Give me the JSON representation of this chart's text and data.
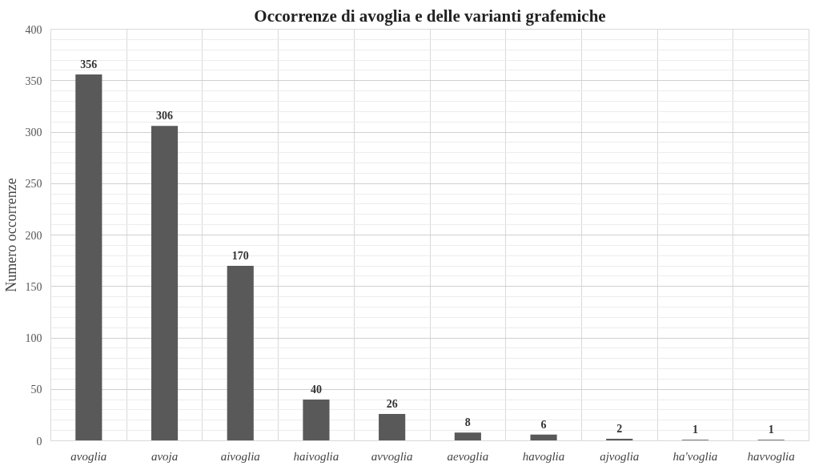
{
  "chart_data": {
    "type": "bar",
    "title": "Occorrenze di avoglia e delle varianti grafemiche",
    "ylabel": "Numero occorrenze",
    "categories": [
      "avoglia",
      "avoja",
      "aivoglia",
      "haivoglia",
      "avvoglia",
      "aevoglia",
      "havoglia",
      "ajvoglia",
      "ha'voglia",
      "havvoglia"
    ],
    "values": [
      356,
      306,
      170,
      40,
      26,
      8,
      6,
      2,
      1,
      1
    ],
    "color": "#595959",
    "ylim": [
      0,
      400
    ],
    "yticks": [
      0,
      50,
      100,
      150,
      200,
      250,
      300,
      350,
      400
    ],
    "grid": true,
    "data_labels": true
  }
}
